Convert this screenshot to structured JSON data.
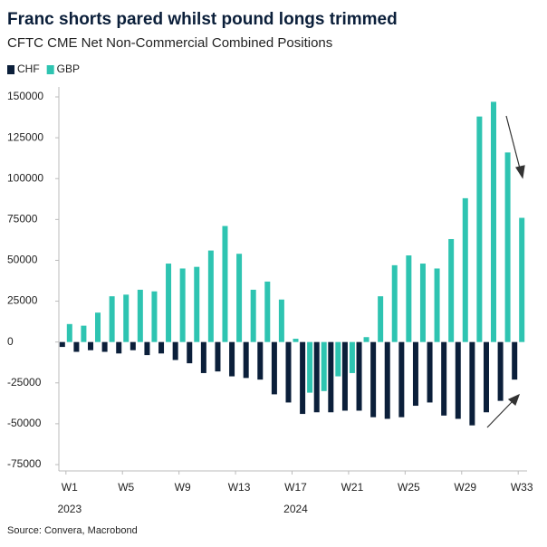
{
  "chart_data": {
    "type": "bar",
    "title": "Franc shorts pared whilst pound longs trimmed",
    "subtitle": "CFTC CME Net Non-Commercial Combined Positions",
    "source": "Source: Convera, Macrobond",
    "categories": [
      "W1",
      null,
      null,
      null,
      "W5",
      null,
      null,
      null,
      "W9",
      null,
      null,
      null,
      "W13",
      null,
      null,
      null,
      "W17",
      null,
      null,
      null,
      "W21",
      null,
      null,
      null,
      "W25",
      null,
      null,
      null,
      "W29",
      null,
      null,
      null,
      "W33"
    ],
    "years": [
      "2023",
      "2024"
    ],
    "series": [
      {
        "name": "CHF",
        "color": "#0b1f3a",
        "values": [
          -3000,
          -6000,
          -5000,
          -6000,
          -7000,
          -5000,
          -8000,
          -7000,
          -11000,
          -13000,
          -19000,
          -18000,
          -21000,
          -22000,
          -23000,
          -32000,
          -37000,
          -44000,
          -43000,
          -43000,
          -42000,
          -42000,
          -46000,
          -47000,
          -46000,
          -39000,
          -37000,
          -45000,
          -47000,
          -51000,
          -43000,
          -36000,
          -23000
        ]
      },
      {
        "name": "GBP",
        "color": "#2ec4b1",
        "values": [
          11000,
          10000,
          18000,
          28000,
          29000,
          32000,
          31000,
          48000,
          45000,
          46000,
          56000,
          71000,
          54000,
          32000,
          37000,
          26000,
          2000,
          -31000,
          -30000,
          -21000,
          -19000,
          3000,
          28000,
          47000,
          53000,
          48000,
          45000,
          63000,
          88000,
          138000,
          147000,
          116000,
          76000
        ]
      }
    ],
    "ylim": [
      -75000,
      150000
    ],
    "yticks": [
      -75000,
      -50000,
      -25000,
      0,
      25000,
      50000,
      75000,
      100000,
      125000,
      150000
    ],
    "legend": "top-left"
  }
}
